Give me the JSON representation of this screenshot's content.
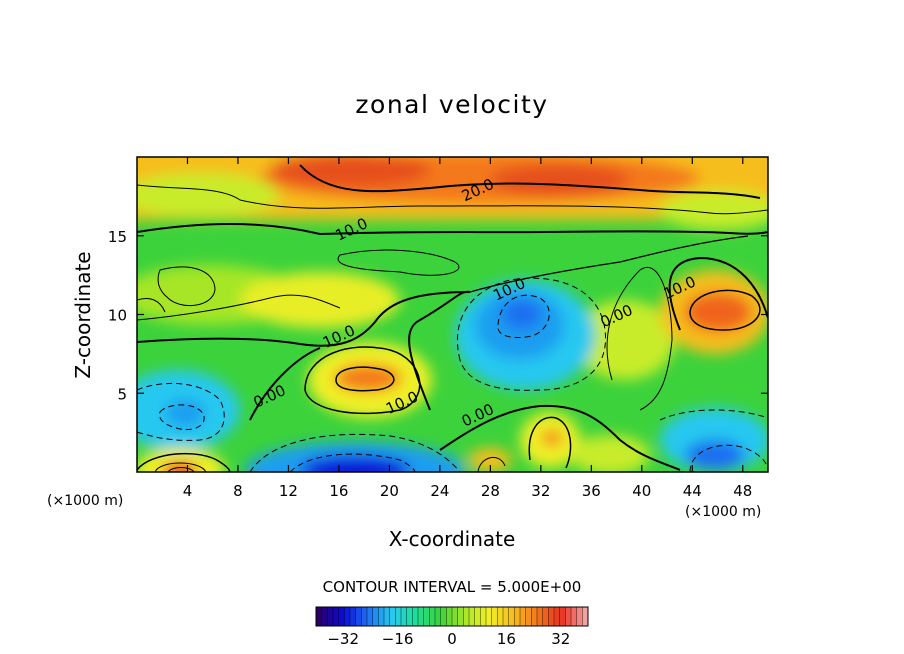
{
  "chart_data": {
    "type": "heatmap",
    "subtype": "filled-contour",
    "title": "zonal velocity",
    "xlabel": "X-coordinate",
    "ylabel": "Z-coordinate",
    "x_unit_note": "(×1000 m)",
    "z_unit_note": "(×1000 m)",
    "xlim": [
      0,
      50
    ],
    "ylim": [
      0,
      20
    ],
    "xticks": [
      4,
      8,
      12,
      16,
      20,
      24,
      28,
      32,
      36,
      40,
      44,
      48
    ],
    "yticks": [
      5,
      10,
      15
    ],
    "contour_interval_label": "CONTOUR INTERVAL = 5.000E+00",
    "contour_interval": 5,
    "contour_labels": [
      {
        "text": "20.0",
        "x": 27,
        "z": 17.9
      },
      {
        "text": "10.0",
        "x": 17,
        "z": 15.4
      },
      {
        "text": "10.0",
        "x": 29.5,
        "z": 11.6
      },
      {
        "text": "10.0",
        "x": 43,
        "z": 11.7
      },
      {
        "text": "10.0",
        "x": 16,
        "z": 8.6
      },
      {
        "text": "10.0",
        "x": 21,
        "z": 4.4
      },
      {
        "text": "0.00",
        "x": 10.5,
        "z": 4.8
      },
      {
        "text": "0.00",
        "x": 27,
        "z": 3.6
      },
      {
        "text": "0.00",
        "x": 38,
        "z": 9.9
      }
    ],
    "colorbar": {
      "min": -40,
      "max": 40,
      "tick_labels": [
        "−32",
        "−16",
        "0",
        "16",
        "32"
      ],
      "tick_values": [
        -32,
        -16,
        0,
        16,
        32
      ],
      "colors": [
        "#2a0066",
        "#0a0ad8",
        "#1e6ef0",
        "#28c8f0",
        "#1ee098",
        "#3cd23c",
        "#a6e628",
        "#f0f028",
        "#f6be1e",
        "#f4781e",
        "#e6321e",
        "#f3a0a0"
      ]
    },
    "features": [
      {
        "kind": "max",
        "x": 27.5,
        "z": 18.5,
        "value": 25
      },
      {
        "kind": "max",
        "x": 46,
        "z": 10.3,
        "value": 22
      },
      {
        "kind": "max",
        "x": 18.5,
        "z": 5.9,
        "value": 22
      },
      {
        "kind": "max",
        "x": 3.6,
        "z": 0.3,
        "value": 30
      },
      {
        "kind": "min",
        "x": 30.5,
        "z": 10,
        "value": -15
      },
      {
        "kind": "min",
        "x": 3,
        "z": 3.7,
        "value": -12
      },
      {
        "kind": "min",
        "x": 18,
        "z": 0.5,
        "value": -32
      },
      {
        "kind": "min",
        "x": 45,
        "z": 1.2,
        "value": -20
      }
    ]
  }
}
